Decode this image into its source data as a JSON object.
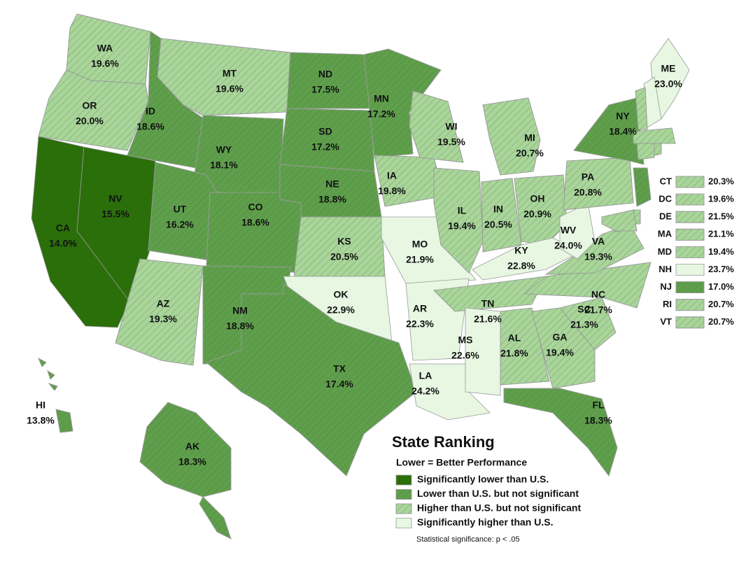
{
  "legend": {
    "title": "State Ranking",
    "subtitle": "Lower = Better Performance",
    "levels": [
      {
        "label": "Significantly lower than U.S.",
        "color": "#2b6f0b",
        "hatch": false
      },
      {
        "label": "Lower than U.S. but not significant",
        "color": "#5f9f4c",
        "hatch": true
      },
      {
        "label": "Higher than U.S. but not significant",
        "color": "#a9d59b",
        "hatch": true
      },
      {
        "label": "Significantly higher than U.S.",
        "color": "#e7f7e2",
        "hatch": false
      }
    ],
    "note": "Statistical significance: p < .05"
  },
  "states": [
    {
      "abbr": "WA",
      "value": "19.6%",
      "level": 2
    },
    {
      "abbr": "OR",
      "value": "20.0%",
      "level": 2
    },
    {
      "abbr": "CA",
      "value": "14.0%",
      "level": 0
    },
    {
      "abbr": "NV",
      "value": "15.5%",
      "level": 0
    },
    {
      "abbr": "ID",
      "value": "18.6%",
      "level": 1
    },
    {
      "abbr": "MT",
      "value": "19.6%",
      "level": 2
    },
    {
      "abbr": "WY",
      "value": "18.1%",
      "level": 1
    },
    {
      "abbr": "UT",
      "value": "16.2%",
      "level": 1
    },
    {
      "abbr": "AZ",
      "value": "19.3%",
      "level": 2
    },
    {
      "abbr": "CO",
      "value": "18.6%",
      "level": 1
    },
    {
      "abbr": "NM",
      "value": "18.8%",
      "level": 1
    },
    {
      "abbr": "ND",
      "value": "17.5%",
      "level": 1
    },
    {
      "abbr": "SD",
      "value": "17.2%",
      "level": 1
    },
    {
      "abbr": "NE",
      "value": "18.8%",
      "level": 1
    },
    {
      "abbr": "KS",
      "value": "20.5%",
      "level": 2
    },
    {
      "abbr": "OK",
      "value": "22.9%",
      "level": 3
    },
    {
      "abbr": "TX",
      "value": "17.4%",
      "level": 1
    },
    {
      "abbr": "MN",
      "value": "17.2%",
      "level": 1
    },
    {
      "abbr": "IA",
      "value": "19.8%",
      "level": 2
    },
    {
      "abbr": "MO",
      "value": "21.9%",
      "level": 3
    },
    {
      "abbr": "AR",
      "value": "22.3%",
      "level": 3
    },
    {
      "abbr": "LA",
      "value": "24.2%",
      "level": 3
    },
    {
      "abbr": "WI",
      "value": "19.5%",
      "level": 2
    },
    {
      "abbr": "IL",
      "value": "19.4%",
      "level": 2
    },
    {
      "abbr": "MI",
      "value": "20.7%",
      "level": 2
    },
    {
      "abbr": "IN",
      "value": "20.5%",
      "level": 2
    },
    {
      "abbr": "OH",
      "value": "20.9%",
      "level": 2
    },
    {
      "abbr": "KY",
      "value": "22.8%",
      "level": 3
    },
    {
      "abbr": "TN",
      "value": "21.6%",
      "level": 2
    },
    {
      "abbr": "MS",
      "value": "22.6%",
      "level": 3
    },
    {
      "abbr": "AL",
      "value": "21.8%",
      "level": 2
    },
    {
      "abbr": "GA",
      "value": "19.4%",
      "level": 2
    },
    {
      "abbr": "FL",
      "value": "18.3%",
      "level": 1
    },
    {
      "abbr": "SC",
      "value": "21.3%",
      "level": 2
    },
    {
      "abbr": "NC",
      "value": "21.7%",
      "level": 2
    },
    {
      "abbr": "VA",
      "value": "19.3%",
      "level": 2
    },
    {
      "abbr": "WV",
      "value": "24.0%",
      "level": 3
    },
    {
      "abbr": "PA",
      "value": "20.8%",
      "level": 2
    },
    {
      "abbr": "NY",
      "value": "18.4%",
      "level": 1
    },
    {
      "abbr": "ME",
      "value": "23.0%",
      "level": 3
    },
    {
      "abbr": "HI",
      "value": "13.8%",
      "level": 1
    },
    {
      "abbr": "AK",
      "value": "18.3%",
      "level": 1
    }
  ],
  "small_states": [
    {
      "abbr": "CT",
      "value": "20.3%",
      "level": 2
    },
    {
      "abbr": "DC",
      "value": "19.6%",
      "level": 2
    },
    {
      "abbr": "DE",
      "value": "21.5%",
      "level": 2
    },
    {
      "abbr": "MA",
      "value": "21.1%",
      "level": 2
    },
    {
      "abbr": "MD",
      "value": "19.4%",
      "level": 2
    },
    {
      "abbr": "NH",
      "value": "23.7%",
      "level": 3
    },
    {
      "abbr": "NJ",
      "value": "17.0%",
      "level": 1
    },
    {
      "abbr": "RI",
      "value": "20.7%",
      "level": 2
    },
    {
      "abbr": "VT",
      "value": "20.7%",
      "level": 2
    }
  ]
}
